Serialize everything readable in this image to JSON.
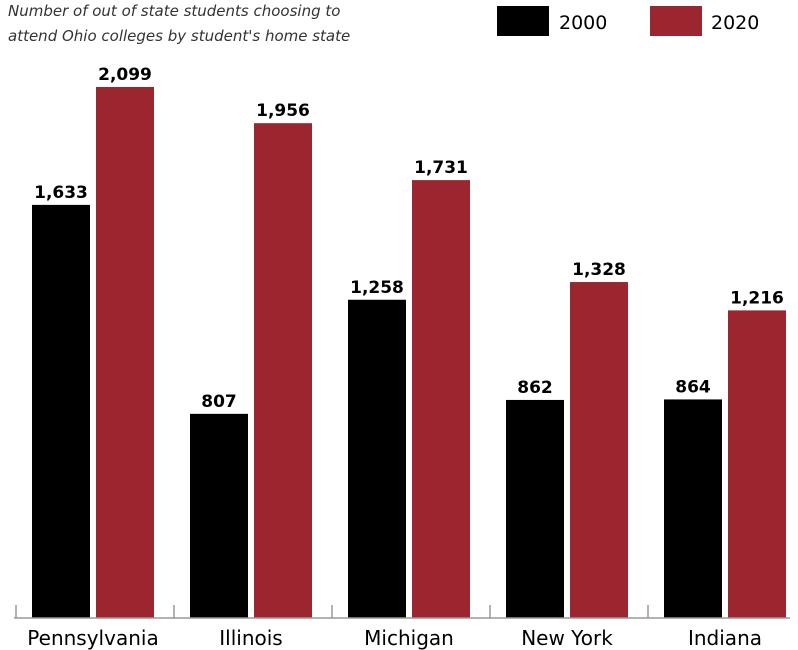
{
  "chart_data": {
    "type": "bar",
    "title_lines": [
      "Number of out of state students choosing to",
      "attend Ohio colleges by student's home state"
    ],
    "categories": [
      "Pennsylvania",
      "Illinois",
      "Michigan",
      "New York",
      "Indiana"
    ],
    "series": [
      {
        "name": "2000",
        "color": "#000000",
        "values": [
          1633,
          807,
          1258,
          862,
          864
        ],
        "labels": [
          "1,633",
          "807",
          "1,258",
          "862",
          "864"
        ]
      },
      {
        "name": "2020",
        "color": "#9b2630",
        "values": [
          2099,
          1956,
          1731,
          1328,
          1216
        ],
        "labels": [
          "2,099",
          "1,956",
          "1,731",
          "1,328",
          "1,216"
        ]
      }
    ],
    "legend_position": "top-right",
    "ylim": [
      0,
      2099
    ],
    "grid": false
  }
}
